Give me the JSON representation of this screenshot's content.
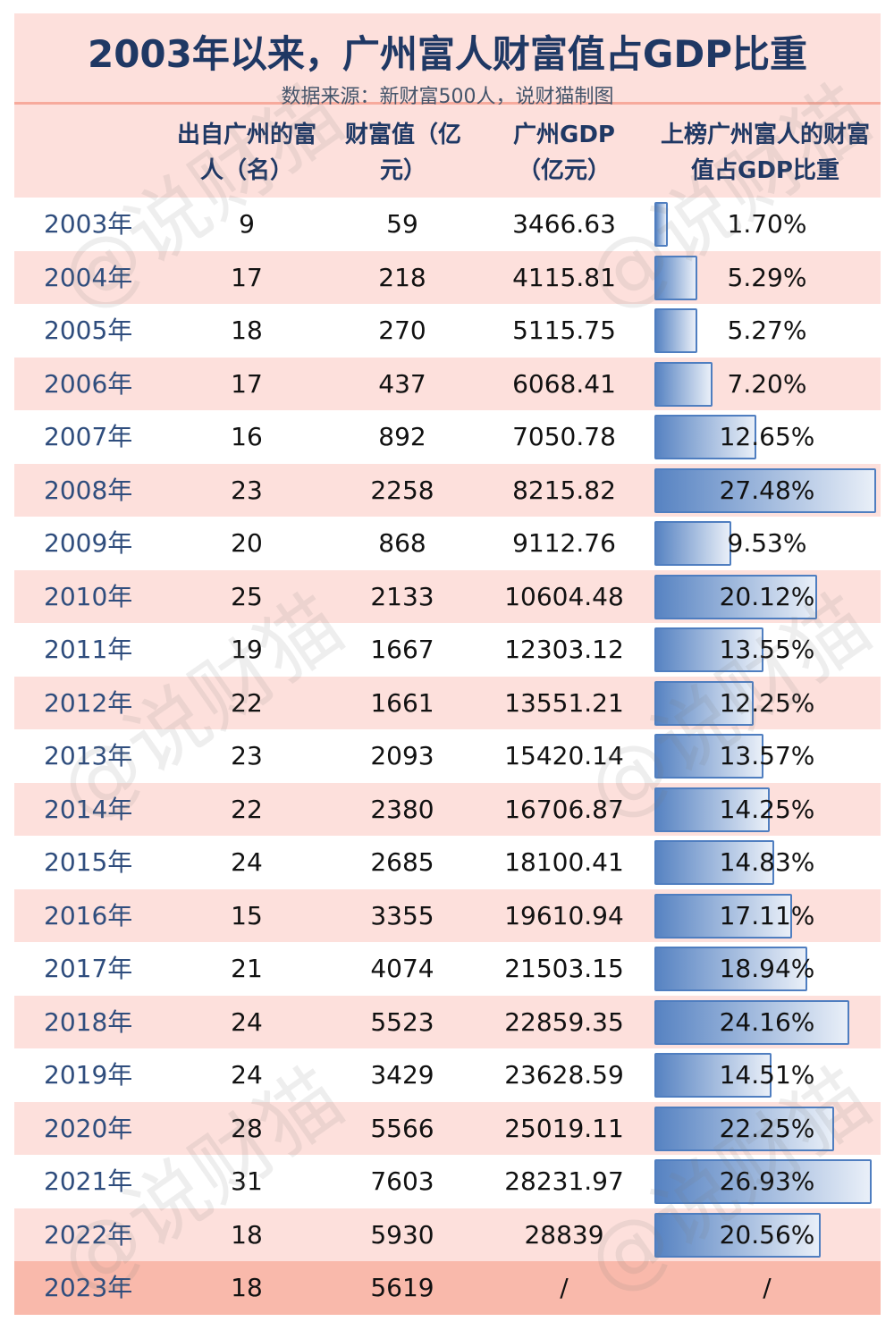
{
  "title": "2003年以来，广州富人财富值占GDP比重",
  "subtitle": "数据来源：新财富500人，说财猫制图",
  "watermark": "@说财猫",
  "colors": {
    "title": "#1f3864",
    "row_alt": "#fde0dc",
    "last_row": "#f9b9ab",
    "bar": "#5783c2"
  },
  "chart_data": {
    "type": "table",
    "columns": [
      "",
      "出自广州的富人（名）",
      "财富值（亿元）",
      "广州GDP（亿元）",
      "上榜广州富人的财富值占GDP比重"
    ],
    "rows": [
      [
        "2003年",
        "9",
        "59",
        "3466.63",
        "1.70%"
      ],
      [
        "2004年",
        "17",
        "218",
        "4115.81",
        "5.29%"
      ],
      [
        "2005年",
        "18",
        "270",
        "5115.75",
        "5.27%"
      ],
      [
        "2006年",
        "17",
        "437",
        "6068.41",
        "7.20%"
      ],
      [
        "2007年",
        "16",
        "892",
        "7050.78",
        "12.65%"
      ],
      [
        "2008年",
        "23",
        "2258",
        "8215.82",
        "27.48%"
      ],
      [
        "2009年",
        "20",
        "868",
        "9112.76",
        "9.53%"
      ],
      [
        "2010年",
        "25",
        "2133",
        "10604.48",
        "20.12%"
      ],
      [
        "2011年",
        "19",
        "1667",
        "12303.12",
        "13.55%"
      ],
      [
        "2012年",
        "22",
        "1661",
        "13551.21",
        "12.25%"
      ],
      [
        "2013年",
        "23",
        "2093",
        "15420.14",
        "13.57%"
      ],
      [
        "2014年",
        "22",
        "2380",
        "16706.87",
        "14.25%"
      ],
      [
        "2015年",
        "24",
        "2685",
        "18100.41",
        "14.83%"
      ],
      [
        "2016年",
        "15",
        "3355",
        "19610.94",
        "17.11%"
      ],
      [
        "2017年",
        "21",
        "4074",
        "21503.15",
        "18.94%"
      ],
      [
        "2018年",
        "24",
        "5523",
        "22859.35",
        "24.16%"
      ],
      [
        "2019年",
        "24",
        "3429",
        "23628.59",
        "14.51%"
      ],
      [
        "2020年",
        "28",
        "5566",
        "25019.11",
        "22.25%"
      ],
      [
        "2021年",
        "31",
        "7603",
        "28231.97",
        "26.93%"
      ],
      [
        "2022年",
        "18",
        "5930",
        "28839",
        "20.56%"
      ],
      [
        "2023年",
        "18",
        "5619",
        "/",
        "/"
      ]
    ]
  }
}
